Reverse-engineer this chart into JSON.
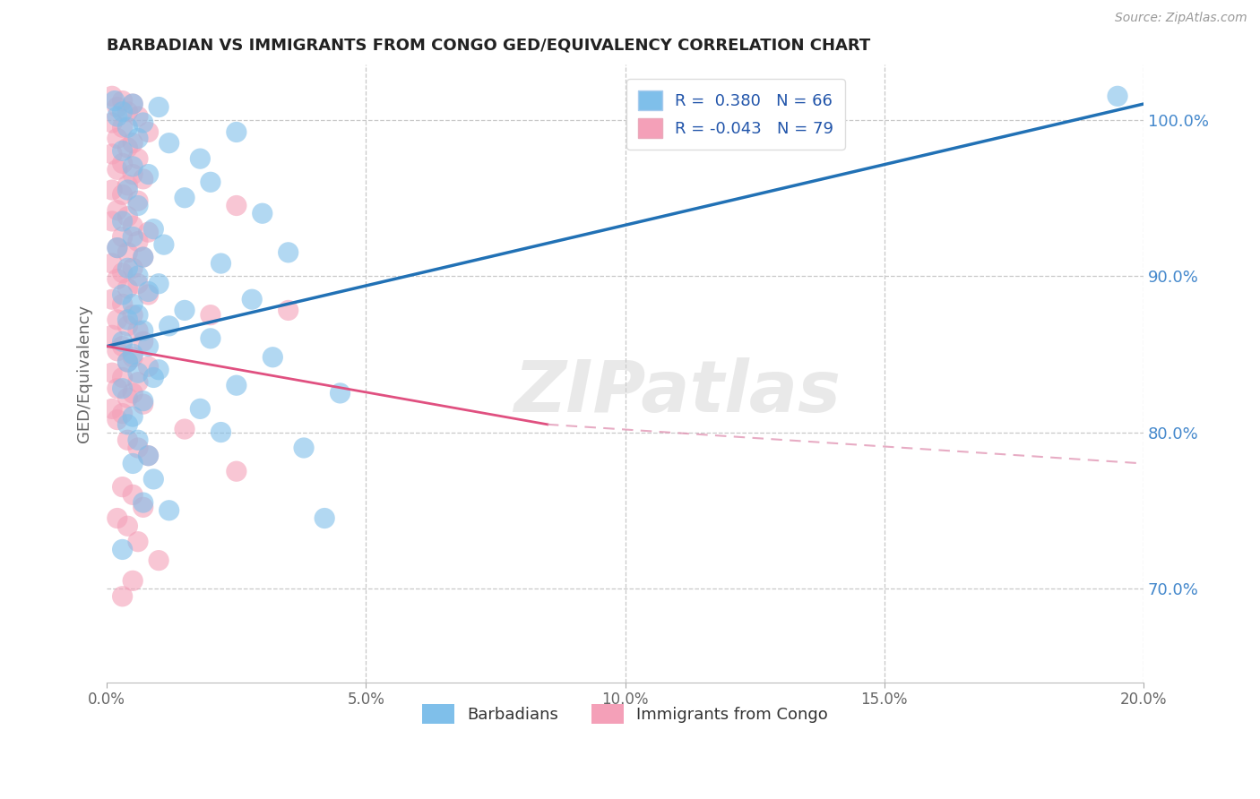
{
  "title": "BARBADIAN VS IMMIGRANTS FROM CONGO GED/EQUIVALENCY CORRELATION CHART",
  "source": "Source: ZipAtlas.com",
  "xlabel": "",
  "ylabel": "GED/Equivalency",
  "legend_labels": [
    "Barbadians",
    "Immigrants from Congo"
  ],
  "blue_R": 0.38,
  "blue_N": 66,
  "pink_R": -0.043,
  "pink_N": 79,
  "xlim": [
    0.0,
    20.0
  ],
  "ylim": [
    64.0,
    103.5
  ],
  "yticks": [
    70.0,
    80.0,
    90.0,
    100.0
  ],
  "xticks": [
    0.0,
    5.0,
    10.0,
    15.0,
    20.0
  ],
  "blue_color": "#7fbfea",
  "pink_color": "#f4a0b8",
  "blue_line_color": "#2171b5",
  "pink_line_solid_color": "#e05080",
  "pink_line_dash_color": "#e090b0",
  "blue_scatter": [
    [
      0.15,
      101.2
    ],
    [
      0.5,
      101.0
    ],
    [
      1.0,
      100.8
    ],
    [
      0.3,
      100.5
    ],
    [
      0.2,
      100.2
    ],
    [
      0.7,
      99.8
    ],
    [
      0.4,
      99.5
    ],
    [
      2.5,
      99.2
    ],
    [
      0.6,
      98.8
    ],
    [
      1.2,
      98.5
    ],
    [
      0.3,
      98.0
    ],
    [
      1.8,
      97.5
    ],
    [
      0.5,
      97.0
    ],
    [
      0.8,
      96.5
    ],
    [
      2.0,
      96.0
    ],
    [
      0.4,
      95.5
    ],
    [
      1.5,
      95.0
    ],
    [
      0.6,
      94.5
    ],
    [
      3.0,
      94.0
    ],
    [
      0.3,
      93.5
    ],
    [
      0.9,
      93.0
    ],
    [
      0.5,
      92.5
    ],
    [
      1.1,
      92.0
    ],
    [
      0.2,
      91.8
    ],
    [
      3.5,
      91.5
    ],
    [
      0.7,
      91.2
    ],
    [
      2.2,
      90.8
    ],
    [
      0.4,
      90.5
    ],
    [
      0.6,
      90.0
    ],
    [
      1.0,
      89.5
    ],
    [
      0.8,
      89.0
    ],
    [
      0.3,
      88.8
    ],
    [
      2.8,
      88.5
    ],
    [
      0.5,
      88.2
    ],
    [
      1.5,
      87.8
    ],
    [
      0.6,
      87.5
    ],
    [
      0.4,
      87.2
    ],
    [
      1.2,
      86.8
    ],
    [
      0.7,
      86.5
    ],
    [
      2.0,
      86.0
    ],
    [
      0.3,
      85.8
    ],
    [
      0.8,
      85.5
    ],
    [
      0.5,
      85.0
    ],
    [
      3.2,
      84.8
    ],
    [
      0.4,
      84.5
    ],
    [
      1.0,
      84.0
    ],
    [
      0.6,
      83.8
    ],
    [
      0.9,
      83.5
    ],
    [
      2.5,
      83.0
    ],
    [
      0.3,
      82.8
    ],
    [
      4.5,
      82.5
    ],
    [
      0.7,
      82.0
    ],
    [
      1.8,
      81.5
    ],
    [
      0.5,
      81.0
    ],
    [
      0.4,
      80.5
    ],
    [
      2.2,
      80.0
    ],
    [
      0.6,
      79.5
    ],
    [
      3.8,
      79.0
    ],
    [
      0.8,
      78.5
    ],
    [
      0.5,
      78.0
    ],
    [
      0.7,
      75.5
    ],
    [
      1.2,
      75.0
    ],
    [
      4.2,
      74.5
    ],
    [
      0.3,
      72.5
    ],
    [
      19.5,
      101.5
    ],
    [
      0.9,
      77.0
    ]
  ],
  "pink_scatter": [
    [
      0.1,
      101.5
    ],
    [
      0.3,
      101.2
    ],
    [
      0.5,
      101.0
    ],
    [
      0.2,
      100.8
    ],
    [
      0.4,
      100.5
    ],
    [
      0.6,
      100.2
    ],
    [
      0.1,
      99.8
    ],
    [
      0.3,
      99.5
    ],
    [
      0.8,
      99.2
    ],
    [
      0.2,
      98.8
    ],
    [
      0.5,
      98.5
    ],
    [
      0.4,
      98.2
    ],
    [
      0.1,
      97.8
    ],
    [
      0.6,
      97.5
    ],
    [
      0.3,
      97.2
    ],
    [
      0.2,
      96.8
    ],
    [
      0.5,
      96.5
    ],
    [
      0.7,
      96.2
    ],
    [
      0.4,
      95.8
    ],
    [
      0.1,
      95.5
    ],
    [
      0.3,
      95.2
    ],
    [
      0.6,
      94.8
    ],
    [
      2.5,
      94.5
    ],
    [
      0.2,
      94.2
    ],
    [
      0.4,
      93.8
    ],
    [
      0.1,
      93.5
    ],
    [
      0.5,
      93.2
    ],
    [
      0.8,
      92.8
    ],
    [
      0.3,
      92.5
    ],
    [
      0.6,
      92.2
    ],
    [
      0.2,
      91.8
    ],
    [
      0.4,
      91.5
    ],
    [
      0.7,
      91.2
    ],
    [
      0.1,
      90.8
    ],
    [
      0.5,
      90.5
    ],
    [
      0.3,
      90.2
    ],
    [
      0.2,
      89.8
    ],
    [
      0.6,
      89.5
    ],
    [
      0.4,
      89.2
    ],
    [
      0.8,
      88.8
    ],
    [
      0.1,
      88.5
    ],
    [
      0.3,
      88.2
    ],
    [
      3.5,
      87.8
    ],
    [
      0.5,
      87.5
    ],
    [
      0.2,
      87.2
    ],
    [
      0.4,
      86.8
    ],
    [
      0.6,
      86.5
    ],
    [
      0.1,
      86.2
    ],
    [
      0.7,
      85.8
    ],
    [
      0.3,
      85.5
    ],
    [
      0.2,
      85.2
    ],
    [
      0.5,
      84.8
    ],
    [
      0.4,
      84.5
    ],
    [
      0.8,
      84.2
    ],
    [
      0.1,
      83.8
    ],
    [
      0.3,
      83.5
    ],
    [
      0.6,
      83.2
    ],
    [
      0.2,
      82.8
    ],
    [
      0.5,
      82.5
    ],
    [
      0.4,
      82.2
    ],
    [
      0.7,
      81.8
    ],
    [
      0.1,
      81.5
    ],
    [
      0.3,
      81.2
    ],
    [
      2.0,
      87.5
    ],
    [
      0.2,
      80.8
    ],
    [
      1.5,
      80.2
    ],
    [
      0.4,
      79.5
    ],
    [
      0.6,
      79.0
    ],
    [
      0.8,
      78.5
    ],
    [
      2.5,
      77.5
    ],
    [
      0.3,
      76.5
    ],
    [
      0.5,
      76.0
    ],
    [
      0.7,
      75.2
    ],
    [
      0.2,
      74.5
    ],
    [
      0.4,
      74.0
    ],
    [
      0.6,
      73.0
    ],
    [
      1.0,
      71.8
    ],
    [
      0.5,
      70.5
    ],
    [
      0.3,
      69.5
    ]
  ],
  "watermark": "ZIPatlas",
  "background_color": "#ffffff",
  "grid_color": "#c8c8c8",
  "title_color": "#222222",
  "axis_label_color": "#666666",
  "blue_line_y0": 85.5,
  "blue_line_y1": 101.0,
  "pink_solid_x0": 0.0,
  "pink_solid_y0": 85.5,
  "pink_solid_x1": 8.5,
  "pink_solid_y1": 80.5,
  "pink_dash_x1": 20.0,
  "pink_dash_y1": 78.0
}
